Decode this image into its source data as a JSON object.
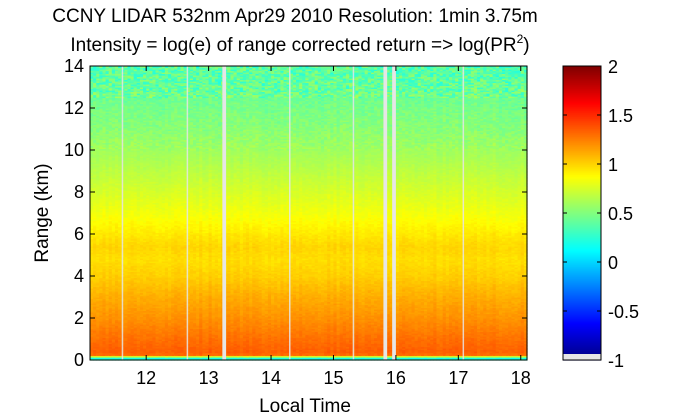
{
  "chart_data": {
    "type": "heatmap",
    "title": "CCNY LIDAR 532nm Apr29 2010 Resolution: 1min 3.75m",
    "subtitle": {
      "main": "Intensity = log(e) of range corrected return => log(PR",
      "superscript": "2",
      "close": ")"
    },
    "xlabel": "Local Time",
    "ylabel": "Range (km)",
    "xlim": [
      11.1,
      18.1
    ],
    "ylim": [
      0,
      14
    ],
    "xticks": [
      12,
      13,
      14,
      15,
      16,
      17,
      18
    ],
    "yticks": [
      0,
      2,
      4,
      6,
      8,
      10,
      12,
      14
    ],
    "colorbar": {
      "colormap": "jet",
      "range": [
        -1,
        2
      ],
      "ticks": [
        -1,
        -0.5,
        0,
        0.5,
        1,
        1.5,
        2
      ],
      "tick_labels": [
        "-1",
        "-0.5",
        "0",
        "0.5",
        "1",
        "1.5",
        "2"
      ]
    },
    "profile": {
      "range_km": [
        0.0,
        0.1,
        0.25,
        0.4,
        1.0,
        2.0,
        3.0,
        4.0,
        4.8,
        5.4,
        6.2,
        7.0,
        8.0,
        9.0,
        10.0,
        11.0,
        12.0,
        13.0,
        14.0
      ],
      "intensity": [
        0.35,
        0.15,
        1.3,
        1.35,
        1.3,
        1.2,
        1.12,
        1.02,
        0.97,
        1.0,
        0.92,
        0.84,
        0.76,
        0.68,
        0.6,
        0.53,
        0.48,
        0.42,
        0.38
      ]
    },
    "data_gaps": [
      {
        "start": 13.22,
        "end": 13.28
      },
      {
        "start": 15.8,
        "end": 15.86
      },
      {
        "start": 15.94,
        "end": 16.0
      }
    ],
    "thin_gaps": [
      11.62,
      12.66,
      14.3,
      15.32,
      17.08
    ],
    "missing_color": "#e6e6e6"
  }
}
